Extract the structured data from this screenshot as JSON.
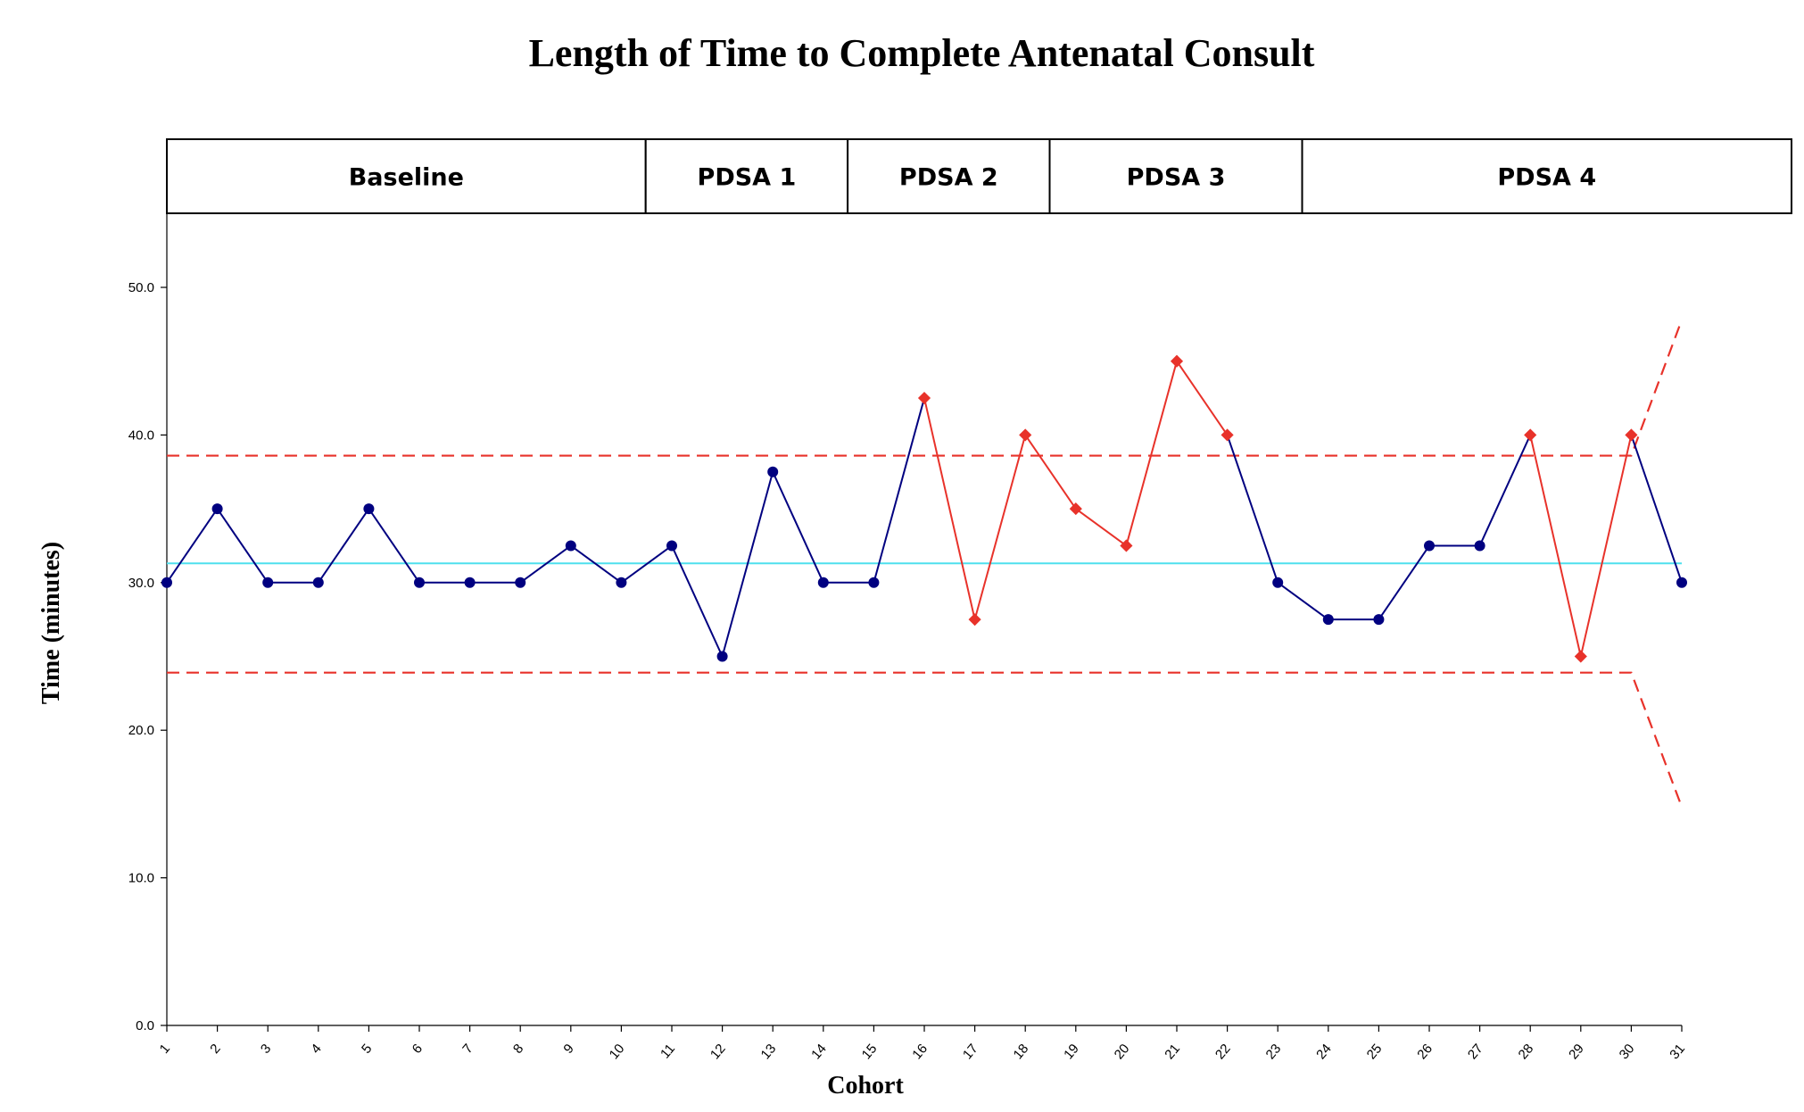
{
  "chart_data": {
    "type": "line",
    "title": "Length of Time to Complete Antenatal Consult",
    "xlabel": "Cohort",
    "ylabel": "Time (minutes)",
    "ylim": [
      0,
      50
    ],
    "yticks": [
      "0.0",
      "10.0",
      "20.0",
      "30.0",
      "40.0",
      "50.0"
    ],
    "grid": false,
    "categories": [
      "1",
      "2",
      "3",
      "4",
      "5",
      "6",
      "7",
      "8",
      "9",
      "10",
      "11",
      "12",
      "13",
      "14",
      "15",
      "16",
      "17",
      "18",
      "19",
      "20",
      "21",
      "22",
      "23",
      "24",
      "25",
      "26",
      "27",
      "28",
      "29",
      "30",
      "31"
    ],
    "series": [
      {
        "values": [
          30,
          35,
          30,
          30,
          35,
          30,
          30,
          30,
          32.5,
          30,
          32.5,
          25,
          37.5,
          30,
          30,
          42.5,
          27.5,
          40,
          35,
          32.5,
          45,
          40,
          30,
          27.5,
          27.5,
          32.5,
          32.5,
          40,
          25,
          40,
          30
        ],
        "flagged_points": [
          16,
          17,
          18,
          19,
          20,
          21,
          22,
          28,
          29,
          30
        ]
      }
    ],
    "center_line": 31.3,
    "upper_control_limit": 38.6,
    "lower_control_limit": 23.9,
    "control_limit_end": {
      "ucl": 47.8,
      "lcl": 14.8
    },
    "phases": [
      {
        "label": "Baseline",
        "start_cohort": 1,
        "end_cohort": 10
      },
      {
        "label": "PDSA 1",
        "start_cohort": 10,
        "end_cohort": 14
      },
      {
        "label": "PDSA 2",
        "start_cohort": 14,
        "end_cohort": 18
      },
      {
        "label": "PDSA 3",
        "start_cohort": 18,
        "end_cohort": 23
      },
      {
        "label": "PDSA 4",
        "start_cohort": 23,
        "end_cohort": 31
      }
    ],
    "colors": {
      "normal": "#000080",
      "flagged": "#e8322a",
      "center_line": "#4ee0ee",
      "control_limits": "#e8322a"
    }
  }
}
